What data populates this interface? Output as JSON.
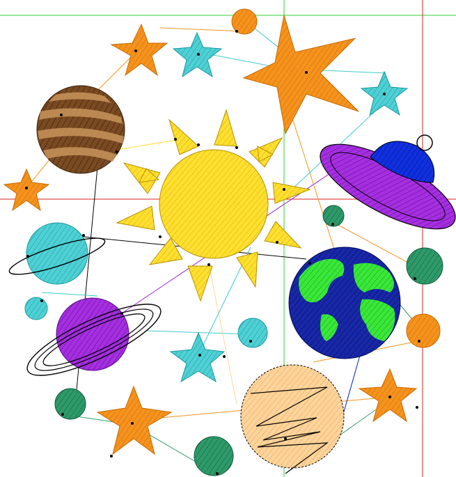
{
  "scene": {
    "background": "#ffffff",
    "guides": {
      "green": "#33cc33",
      "red": "#dd2222"
    },
    "palette": {
      "orange": "#f5931e",
      "cyan": "#3fc8cc",
      "yellow": "#ffe030",
      "brown": "#7a4a22",
      "brown_light": "#c8945a",
      "purple": "#9a1fd4",
      "blue": "#0022cc",
      "navy": "#0a1a99",
      "green": "#2fdf2f",
      "teal": "#2e9a6a",
      "peach": "#ffd49a",
      "black": "#000000"
    }
  }
}
